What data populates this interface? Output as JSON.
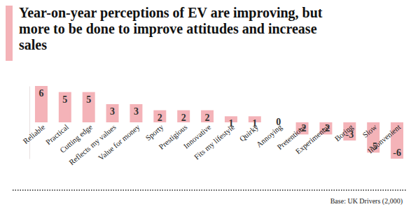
{
  "chart_data": {
    "type": "bar",
    "title": "Year-on-year perceptions of EV are improving, but more to be done to improve attitudes and increase sales",
    "note": "Base: UK Drivers (2,000)",
    "categories": [
      "Reliable",
      "Practical",
      "Cutting edge",
      "Reflects my values",
      "Value for money",
      "Sporty",
      "Prestigious",
      "Innovative",
      "Fits my lifestyle",
      "Quirky",
      "Annoying",
      "Pretentious",
      "Experimental",
      "Boring",
      "Slow",
      "Inconvenient"
    ],
    "values": [
      6,
      5,
      5,
      3,
      3,
      2,
      2,
      2,
      1,
      1,
      0,
      -2,
      -2,
      -3,
      -5,
      -6
    ],
    "color": "#f4b3b8",
    "ylim": [
      -6,
      6
    ],
    "yticks": [],
    "grid": false,
    "data_labels": true,
    "tick_labels": "x"
  }
}
